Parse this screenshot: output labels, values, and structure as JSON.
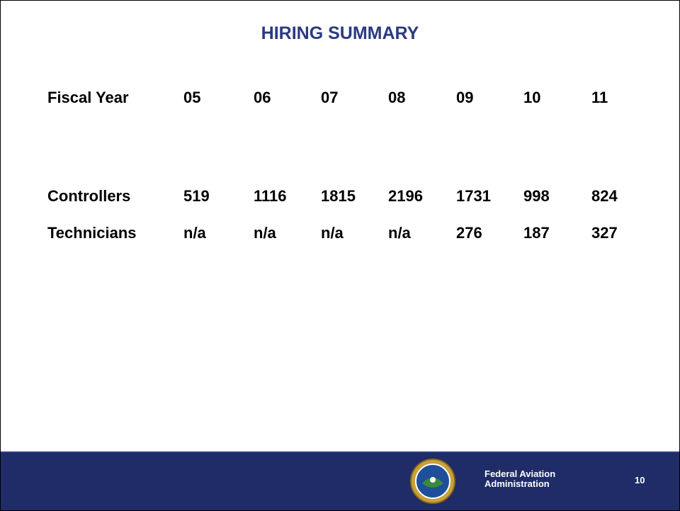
{
  "title": "HIRING SUMMARY",
  "table": {
    "rows": [
      [
        "Fiscal Year",
        "05",
        "06",
        "07",
        "08",
        "09",
        "10",
        "11"
      ],
      [
        "Controllers",
        519,
        1116,
        1815,
        2196,
        1731,
        998,
        824
      ],
      [
        "Technicians",
        "n/a",
        "n/a",
        "n/a",
        "n/a",
        276,
        187,
        327
      ]
    ]
  },
  "footer": {
    "organization": [
      "Federal Aviation",
      "Administration"
    ],
    "page_number": 10
  }
}
